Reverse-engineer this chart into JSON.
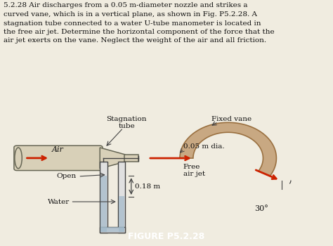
{
  "title_text": "5.2.28 Air discharges from a 0.05 m-diameter nozzle and strikes a\ncurved vane, which is in a vertical plane, as shown in Fig. P5.2.28. A\nstagnation tube connected to a water U-tube manometer is located in\nthe free air jet. Determine the horizontal component of the force that the\nair jet exerts on the vane. Neglect the weight of the air and all friction.",
  "figure_label": "FIGURE P5.2.28",
  "label_stagnation": "Stagnation\ntube",
  "label_fixed_vane": "Fixed vane",
  "label_dia": "0.05 m dia.",
  "label_air": "Air",
  "label_open": "Open",
  "label_water": "Water",
  "label_018": "0.18 m",
  "label_free": "Free\nair jet",
  "label_30": "30°",
  "bg_color": "#f0ece0",
  "vane_color": "#c8a882",
  "vane_edge": "#9a7040",
  "nozzle_color": "#d8d0b8",
  "nozzle_edge": "#666655",
  "pipe_color": "#cccccc",
  "water_color": "#a0b8c8",
  "arrow_color": "#cc2200",
  "text_color": "#111111",
  "figure_bg": "#008080",
  "figure_text": "#ffffff",
  "manometer_face": "#e0e0e0",
  "manometer_edge": "#444444"
}
